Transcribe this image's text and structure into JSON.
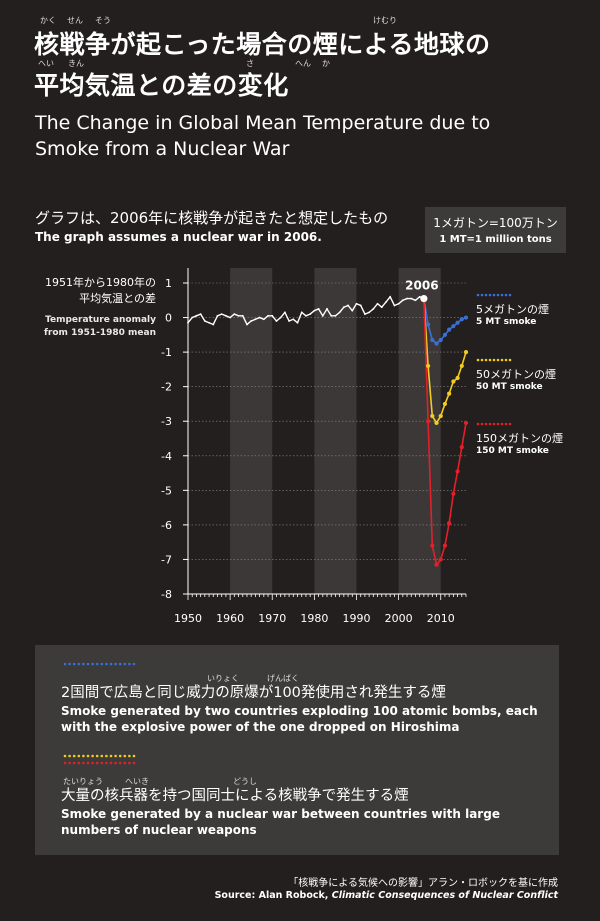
{
  "title_jp_line1": "核戦争が起こった場合の煙による地球の",
  "title_jp_line2": "平均気温との差の変化",
  "title_ruby": {
    "kaku": "かく",
    "sen": "せん",
    "sou": "そう",
    "kemuri": "けむり",
    "hei": "へい",
    "kin": "きん",
    "sa": "さ",
    "hen": "へん",
    "ka": "か"
  },
  "title_en_line1": "The Change in Global Mean Temperature due to",
  "title_en_line2": "Smoke from a Nuclear War",
  "note_jp": "グラフは、2006年に核戦争が起きたと想定したもの",
  "note_en": "The graph assumes a nuclear war in 2006.",
  "mt_box": {
    "jp": "1メガトン=100万トン",
    "en": "1 MT=1 million tons"
  },
  "ylabel_jp_line1": "1951年から1980年の",
  "ylabel_jp_line2": "平均気温との差",
  "ylabel_en_line1": "Temperature anomaly",
  "ylabel_en_line2": "from 1951-1980 mean",
  "colors": {
    "history": "#ffffff",
    "s5": "#3a6fd8",
    "s50": "#f2cc22",
    "s150": "#e3202a",
    "band": "#3c3838",
    "panel": "#3d3a3a",
    "bg": "#231f1e"
  },
  "chart_data": {
    "type": "line",
    "xlim": [
      1950,
      2016
    ],
    "ylim": [
      -8,
      1
    ],
    "xticks": [
      "1950",
      "1960",
      "1970",
      "1980",
      "1990",
      "2000",
      "2010"
    ],
    "yticks": [
      "1",
      "0",
      "-1",
      "-2",
      "-3",
      "-4",
      "-5",
      "-6",
      "-7",
      "-8"
    ],
    "bands": [
      [
        1960,
        1970
      ],
      [
        1980,
        1990
      ],
      [
        2000,
        2010
      ]
    ],
    "marker_label": "2006",
    "history": {
      "x": [
        1950,
        1951,
        1952,
        1953,
        1954,
        1955,
        1956,
        1957,
        1958,
        1959,
        1960,
        1961,
        1962,
        1963,
        1964,
        1965,
        1966,
        1967,
        1968,
        1969,
        1970,
        1971,
        1972,
        1973,
        1974,
        1975,
        1976,
        1977,
        1978,
        1979,
        1980,
        1981,
        1982,
        1983,
        1984,
        1985,
        1986,
        1987,
        1988,
        1989,
        1990,
        1991,
        1992,
        1993,
        1994,
        1995,
        1996,
        1997,
        1998,
        1999,
        2000,
        2001,
        2002,
        2003,
        2004,
        2005,
        2006
      ],
      "y": [
        -0.15,
        0.0,
        0.05,
        0.1,
        -0.1,
        -0.15,
        -0.2,
        0.05,
        0.1,
        0.05,
        0.0,
        0.1,
        0.05,
        0.05,
        -0.2,
        -0.1,
        -0.05,
        0.0,
        -0.05,
        0.05,
        0.05,
        -0.1,
        0.0,
        0.15,
        -0.1,
        -0.05,
        -0.15,
        0.15,
        0.05,
        0.1,
        0.2,
        0.25,
        0.05,
        0.25,
        0.05,
        0.05,
        0.15,
        0.3,
        0.35,
        0.2,
        0.4,
        0.35,
        0.1,
        0.15,
        0.25,
        0.4,
        0.3,
        0.45,
        0.6,
        0.35,
        0.4,
        0.5,
        0.55,
        0.55,
        0.5,
        0.6,
        0.55
      ]
    },
    "series": [
      {
        "name": "5メガトンの煙",
        "name_en": "5 MT smoke",
        "color": "#3a6fd8",
        "x": [
          2006,
          2007,
          2008,
          2009,
          2010,
          2011,
          2012,
          2013,
          2014,
          2015,
          2016
        ],
        "y": [
          0.55,
          -0.2,
          -0.65,
          -0.75,
          -0.65,
          -0.5,
          -0.35,
          -0.25,
          -0.15,
          -0.05,
          0.0
        ]
      },
      {
        "name": "50メガトンの煙",
        "name_en": "50 MT smoke",
        "color": "#f2cc22",
        "x": [
          2006,
          2007,
          2008,
          2009,
          2010,
          2011,
          2012,
          2013,
          2014,
          2015,
          2016
        ],
        "y": [
          0.55,
          -1.4,
          -2.85,
          -3.05,
          -2.85,
          -2.5,
          -2.2,
          -1.85,
          -1.75,
          -1.4,
          -1.0
        ]
      },
      {
        "name": "150メガトンの煙",
        "name_en": "150 MT smoke",
        "color": "#e3202a",
        "x": [
          2006,
          2007,
          2008,
          2009,
          2010,
          2011,
          2012,
          2013,
          2014,
          2015,
          2016
        ],
        "y": [
          0.55,
          -3.0,
          -6.6,
          -7.15,
          -7.0,
          -6.6,
          -5.95,
          -5.1,
          -4.45,
          -3.75,
          -3.05
        ]
      }
    ]
  },
  "desc": {
    "item1_jp": "2国間で広島と同じ威力の原爆が100発使用され発生する煙",
    "item1_ruby_iryoku": "いりょく",
    "item1_ruby_genbaku": "げんばく",
    "item1_en": "Smoke generated by two countries exploding 100 atomic bombs, each with the explosive power of the one dropped on Hiroshima",
    "item2_jp": "大量の核兵器を持つ国同士による核戦争で発生する煙",
    "item2_ruby_tairyou": "たいりょう",
    "item2_ruby_heiki": "へいき",
    "item2_ruby_doushi": "どうし",
    "item2_en": "Smoke generated by a nuclear war between countries with large numbers of nuclear weapons"
  },
  "source_jp": "「核戦争による気候への影響」アラン・ロボックを基に作成",
  "source_en_prefix": "Source: Alan Robock, ",
  "source_en_title": "Climatic Consequences of Nuclear Conflict"
}
